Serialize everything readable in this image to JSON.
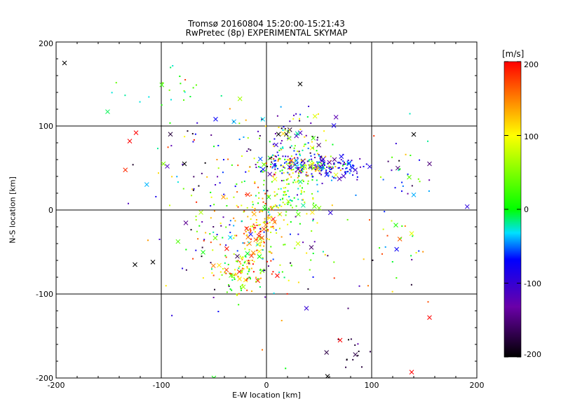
{
  "chart_data": {
    "type": "scatter",
    "title": "Tromsø 20160804 15:20:00-15:21:43",
    "subtitle": "RwPretec (8p) EXPERIMENTAL SKYMAP",
    "xlabel": "E-W location [km]",
    "ylabel": "N-S location [km]",
    "xlim": [
      -200,
      200
    ],
    "ylim": [
      -200,
      200
    ],
    "xticks": [
      "-200",
      "-100",
      "0",
      "100",
      "200"
    ],
    "yticks": [
      "-200",
      "-100",
      "0",
      "100",
      "200"
    ],
    "grid": true,
    "colorbar": {
      "title": "[m/s]",
      "range": [
        -200,
        200
      ],
      "ticks": [
        "-200",
        "-100",
        "0",
        "100",
        "200"
      ],
      "colormap": [
        "#000000",
        "#6a00a8",
        "#0000ff",
        "#00e0ff",
        "#00ff00",
        "#ffff00",
        "#ff0000"
      ]
    },
    "marker_legend": {
      "small_dot": "point",
      "large": "x"
    },
    "clusters": [
      {
        "cx": 28,
        "cy": 52,
        "sx": 22,
        "sy": 8,
        "n": 180,
        "vmin": -150,
        "vmax": 200
      },
      {
        "cx": 60,
        "cy": 50,
        "sx": 18,
        "sy": 7,
        "n": 110,
        "vmin": -140,
        "vmax": -40
      },
      {
        "cx": 20,
        "cy": 85,
        "sx": 18,
        "sy": 20,
        "n": 110,
        "vmin": -200,
        "vmax": 120
      },
      {
        "cx": -8,
        "cy": -20,
        "sx": 12,
        "sy": 22,
        "n": 130,
        "vmin": 60,
        "vmax": 200
      },
      {
        "cx": 20,
        "cy": 15,
        "sx": 14,
        "sy": 14,
        "n": 90,
        "vmin": -40,
        "vmax": 120
      },
      {
        "cx": -22,
        "cy": -75,
        "sx": 10,
        "sy": 12,
        "n": 90,
        "vmin": -20,
        "vmax": 200
      },
      {
        "cx": -45,
        "cy": -40,
        "sx": 18,
        "sy": 25,
        "n": 60,
        "vmin": -200,
        "vmax": 200
      },
      {
        "cx": -60,
        "cy": 45,
        "sx": 30,
        "sy": 40,
        "n": 70,
        "vmin": -200,
        "vmax": 200
      },
      {
        "cx": 10,
        "cy": -60,
        "sx": 40,
        "sy": 50,
        "n": 70,
        "vmin": -200,
        "vmax": 200
      },
      {
        "cx": 60,
        "cy": 0,
        "sx": 50,
        "sy": 60,
        "n": 60,
        "vmin": -200,
        "vmax": 200
      },
      {
        "cx": 85,
        "cy": -175,
        "sx": 12,
        "sy": 14,
        "n": 14,
        "vmin": -200,
        "vmax": -170
      },
      {
        "cx": -100,
        "cy": 140,
        "sx": 20,
        "sy": 15,
        "n": 22,
        "vmin": -30,
        "vmax": 50
      },
      {
        "cx": 130,
        "cy": 40,
        "sx": 12,
        "sy": 14,
        "n": 18,
        "vmin": -200,
        "vmax": 200
      },
      {
        "cx": 130,
        "cy": -45,
        "sx": 15,
        "sy": 15,
        "n": 14,
        "vmin": -200,
        "vmax": 200
      }
    ],
    "points": [
      {
        "x": -192,
        "y": 175,
        "v": -200,
        "m": "x"
      },
      {
        "x": 32,
        "y": 150,
        "v": -200,
        "m": "x"
      },
      {
        "x": -130,
        "y": 82,
        "v": 200,
        "m": "x"
      },
      {
        "x": -124,
        "y": 92,
        "v": 200,
        "m": "x"
      },
      {
        "x": -125,
        "y": -65,
        "v": -200,
        "m": "x"
      },
      {
        "x": -108,
        "y": -62,
        "v": -200,
        "m": "x"
      },
      {
        "x": 140,
        "y": 90,
        "v": -200,
        "m": "x"
      },
      {
        "x": 155,
        "y": 55,
        "v": -150,
        "m": "x"
      },
      {
        "x": 155,
        "y": -128,
        "v": 200,
        "m": "x"
      },
      {
        "x": 138,
        "y": -193,
        "v": 200,
        "m": "x"
      },
      {
        "x": 58,
        "y": -198,
        "v": -200,
        "m": "x"
      },
      {
        "x": -50,
        "y": -200,
        "v": 0,
        "m": "x"
      },
      {
        "x": 70,
        "y": -155,
        "v": 200,
        "m": "x"
      },
      {
        "x": 38,
        "y": -117,
        "v": -100,
        "m": "x"
      },
      {
        "x": 140,
        "y": 18,
        "v": -40,
        "m": "x"
      },
      {
        "x": 123,
        "y": -18,
        "v": 10,
        "m": "x"
      },
      {
        "x": 138,
        "y": -28,
        "v": 90,
        "m": "x"
      },
      {
        "x": -98,
        "y": 55,
        "v": 50,
        "m": "x"
      },
      {
        "x": -78,
        "y": 55,
        "v": -200,
        "m": "x"
      },
      {
        "x": 30,
        "y": -40,
        "v": 80,
        "m": "x"
      }
    ]
  }
}
